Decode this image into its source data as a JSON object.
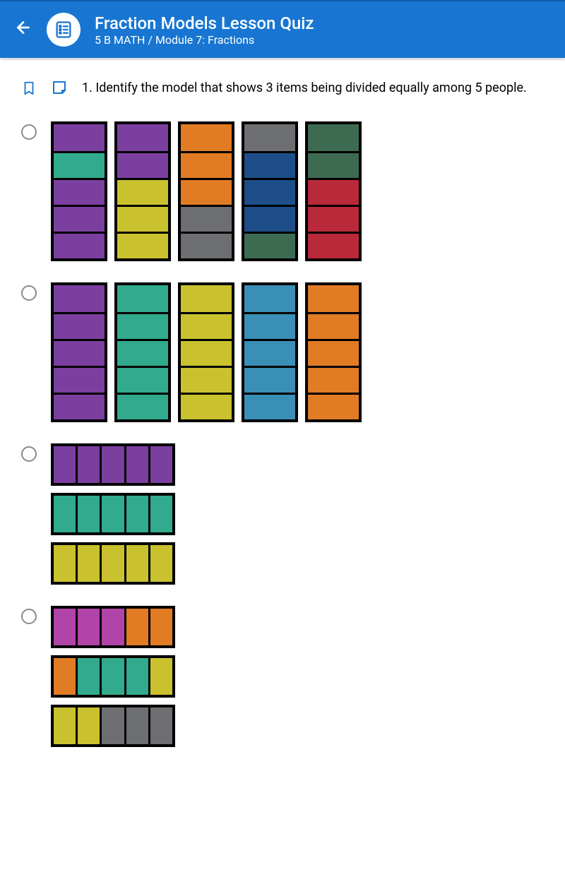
{
  "header": {
    "title": "Fraction Models Lesson Quiz",
    "subtitle": "5 B MATH / Module 7: Fractions"
  },
  "question": {
    "number": "1.",
    "text": "Identify the model that shows 3 items being divided equally among 5 people."
  },
  "colors": {
    "purple": "#7b3fa0",
    "teal": "#32aa8e",
    "yellow": "#cac12f",
    "orange": "#e17c25",
    "gray": "#6d6e71",
    "darkblue": "#1d4e89",
    "darkgreen": "#3d6b52",
    "red": "#b92939",
    "lightblue": "#3a8fb7",
    "magenta": "#b044a8",
    "black": "#000000"
  },
  "options": {
    "A": {
      "type": "vertical_bars_5x5",
      "bars": [
        [
          "purple",
          "teal",
          "purple",
          "purple",
          "purple"
        ],
        [
          "purple",
          "purple",
          "yellow",
          "yellow",
          "yellow"
        ],
        [
          "orange",
          "orange",
          "orange",
          "gray",
          "gray"
        ],
        [
          "gray",
          "darkblue",
          "darkblue",
          "darkblue",
          "darkgreen"
        ],
        [
          "darkgreen",
          "darkgreen",
          "red",
          "red",
          "red"
        ]
      ]
    },
    "B": {
      "type": "vertical_bars_5x5",
      "bars": [
        [
          "purple",
          "purple",
          "purple",
          "purple",
          "purple"
        ],
        [
          "teal",
          "teal",
          "teal",
          "teal",
          "teal"
        ],
        [
          "yellow",
          "yellow",
          "yellow",
          "yellow",
          "yellow"
        ],
        [
          "lightblue",
          "lightblue",
          "lightblue",
          "lightblue",
          "lightblue"
        ],
        [
          "orange",
          "orange",
          "orange",
          "orange",
          "orange"
        ]
      ]
    },
    "C": {
      "type": "horizontal_bars_3x5",
      "bars": [
        [
          "purple",
          "purple",
          "purple",
          "purple",
          "purple"
        ],
        [
          "teal",
          "teal",
          "teal",
          "teal",
          "teal"
        ],
        [
          "yellow",
          "yellow",
          "yellow",
          "yellow",
          "yellow"
        ]
      ]
    },
    "D": {
      "type": "horizontal_bars_3x5",
      "bars": [
        [
          "magenta",
          "magenta",
          "magenta",
          "orange",
          "orange"
        ],
        [
          "orange",
          "teal",
          "teal",
          "teal",
          "yellow"
        ],
        [
          "yellow",
          "yellow",
          "gray",
          "gray",
          "gray"
        ]
      ]
    }
  }
}
